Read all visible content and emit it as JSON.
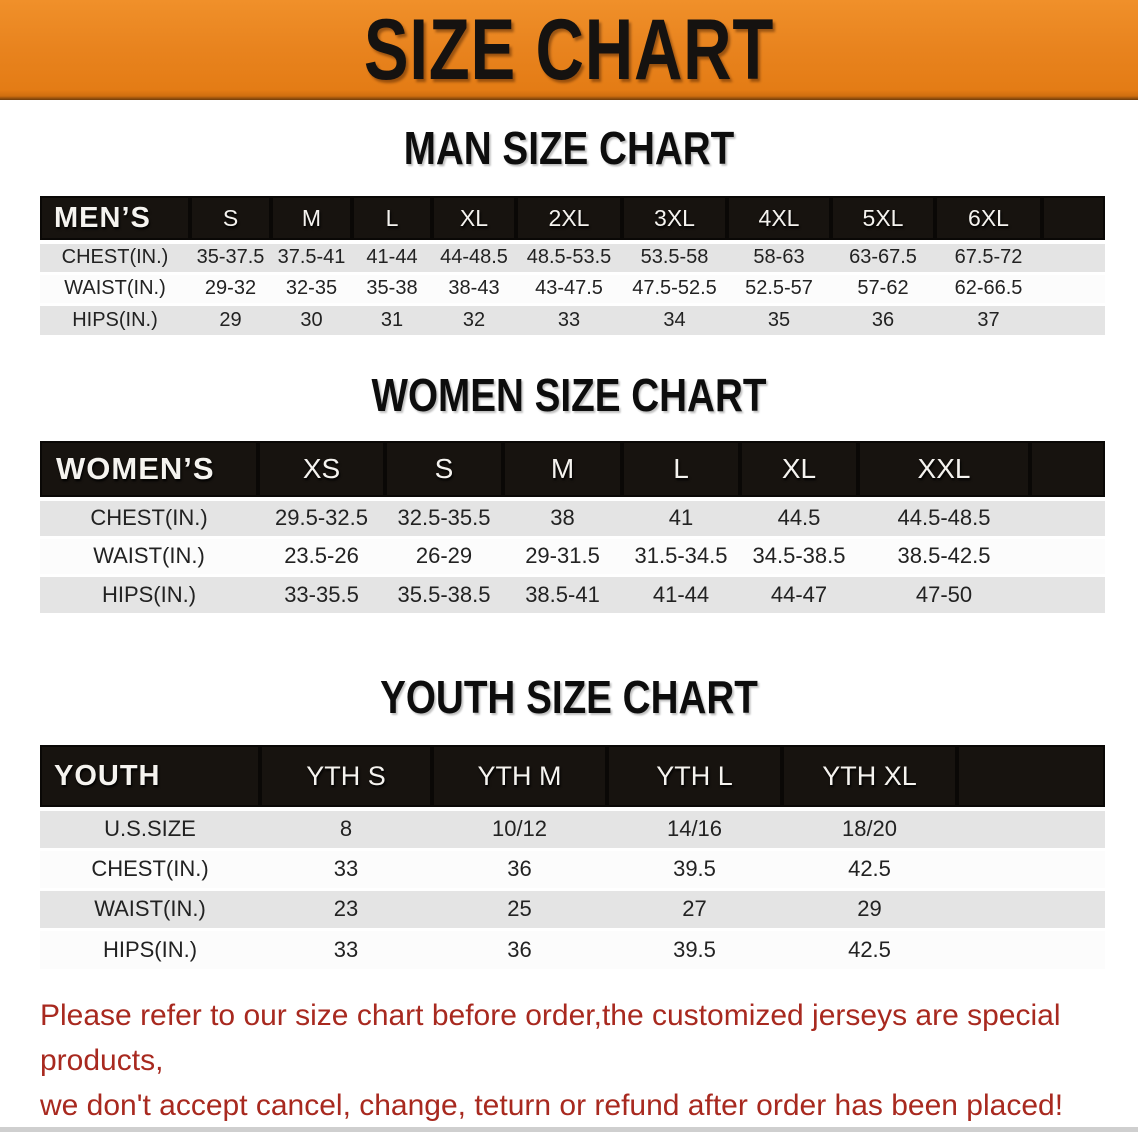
{
  "banner": {
    "title": "SIZE CHART",
    "bg_color": "#E8831E",
    "text_color": "#151210"
  },
  "sections": [
    {
      "key": "men",
      "title": "MAN SIZE CHART",
      "header_label": "MEN’S",
      "columns": [
        "S",
        "M",
        "L",
        "XL",
        "2XL",
        "3XL",
        "4XL",
        "5XL",
        "6XL"
      ],
      "rows": [
        {
          "label": "CHEST(IN.)",
          "values": [
            "35-37.5",
            "37.5-41",
            "41-44",
            "44-48.5",
            "48.5-53.5",
            "53.5-58",
            "58-63",
            "63-67.5",
            "67.5-72"
          ]
        },
        {
          "label": "WAIST(IN.)",
          "values": [
            "29-32",
            "32-35",
            "35-38",
            "38-43",
            "43-47.5",
            "47.5-52.5",
            "52.5-57",
            "57-62",
            "62-66.5"
          ]
        },
        {
          "label": "HIPS(IN.)",
          "values": [
            "29",
            "30",
            "31",
            "32",
            "33",
            "34",
            "35",
            "36",
            "37"
          ]
        }
      ]
    },
    {
      "key": "women",
      "title": "WOMEN SIZE CHART",
      "header_label": "WOMEN’S",
      "columns": [
        "XS",
        "S",
        "M",
        "L",
        "XL",
        "XXL"
      ],
      "rows": [
        {
          "label": "CHEST(IN.)",
          "values": [
            "29.5-32.5",
            "32.5-35.5",
            "38",
            "41",
            "44.5",
            "44.5-48.5"
          ]
        },
        {
          "label": "WAIST(IN.)",
          "values": [
            "23.5-26",
            "26-29",
            "29-31.5",
            "31.5-34.5",
            "34.5-38.5",
            "38.5-42.5"
          ]
        },
        {
          "label": "HIPS(IN.)",
          "values": [
            "33-35.5",
            "35.5-38.5",
            "38.5-41",
            "41-44",
            "44-47",
            "47-50"
          ]
        }
      ]
    },
    {
      "key": "youth",
      "title": "YOUTH SIZE CHART",
      "header_label": "YOUTH",
      "columns": [
        "YTH S",
        "YTH M",
        "YTH L",
        "YTH XL"
      ],
      "rows": [
        {
          "label": "U.S.SIZE",
          "values": [
            "8",
            "10/12",
            "14/16",
            "18/20"
          ]
        },
        {
          "label": "CHEST(IN.)",
          "values": [
            "33",
            "36",
            "39.5",
            "42.5"
          ]
        },
        {
          "label": "WAIST(IN.)",
          "values": [
            "23",
            "25",
            "27",
            "29"
          ]
        },
        {
          "label": "HIPS(IN.)",
          "values": [
            "33",
            "36",
            "39.5",
            "42.5"
          ]
        }
      ]
    }
  ],
  "footer": {
    "lines": [
      "Please refer to our size chart before order,the customized jerseys are special products,",
      "we don't accept cancel, change, teturn or refund after order has been placed!"
    ],
    "text_color": "#A8291F"
  },
  "colors": {
    "header_black": "#17130F",
    "row_gray": "#E4E4E4",
    "row_white": "#FCFCFC"
  }
}
